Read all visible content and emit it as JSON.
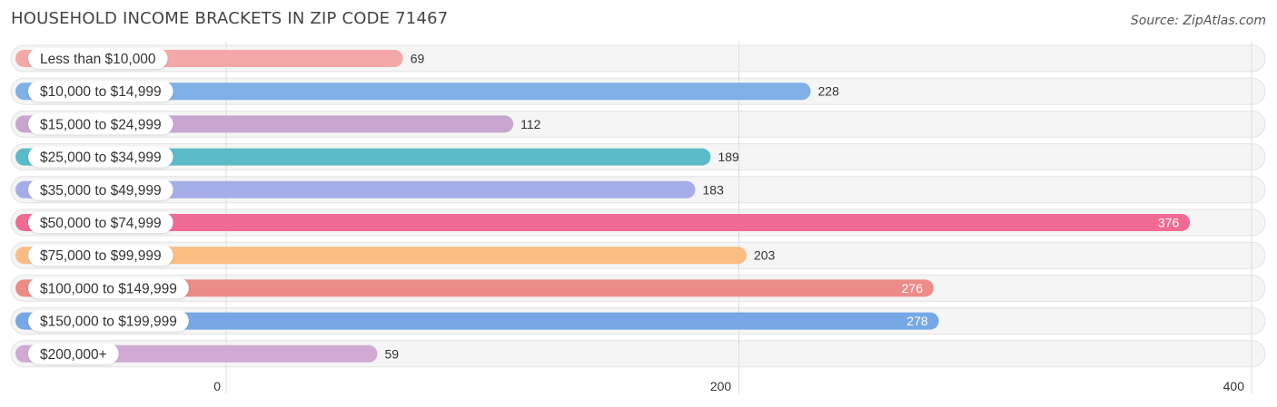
{
  "title": "HOUSEHOLD INCOME BRACKETS IN ZIP CODE 71467",
  "source": "Source: ZipAtlas.com",
  "chart_data": {
    "type": "bar",
    "orientation": "horizontal",
    "categories": [
      "Less than $10,000",
      "$10,000 to $14,999",
      "$15,000 to $24,999",
      "$25,000 to $34,999",
      "$35,000 to $49,999",
      "$50,000 to $74,999",
      "$75,000 to $99,999",
      "$100,000 to $149,999",
      "$150,000 to $199,999",
      "$200,000+"
    ],
    "values": [
      69,
      228,
      112,
      189,
      183,
      376,
      203,
      276,
      278,
      59
    ],
    "colors": [
      "#f4a9a8",
      "#7fb0e6",
      "#c9a6d0",
      "#5bbcc7",
      "#a6aee9",
      "#f06b94",
      "#fbbd82",
      "#eb8c88",
      "#76a8e5",
      "#d0aad3"
    ],
    "value_labels_inside": [
      false,
      false,
      false,
      false,
      false,
      true,
      false,
      true,
      true,
      false
    ],
    "xlim": [
      0,
      400
    ],
    "x_ticks": [
      0,
      200,
      400
    ],
    "grid": true
  }
}
